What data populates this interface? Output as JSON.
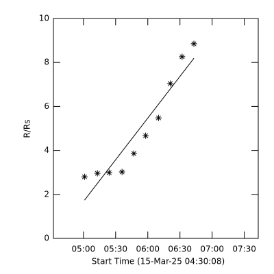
{
  "chart_data": {
    "type": "scatter",
    "xlabel": "Start Time (15-Mar-25 04:30:08)",
    "ylabel": "R/Rs",
    "xlim": [
      272,
      463
    ],
    "ylim": [
      0,
      10
    ],
    "xticks": [
      {
        "value": 300,
        "label": "05:00"
      },
      {
        "value": 330,
        "label": "05:30"
      },
      {
        "value": 360,
        "label": "06:00"
      },
      {
        "value": 390,
        "label": "06:30"
      },
      {
        "value": 420,
        "label": "07:00"
      },
      {
        "value": 450,
        "label": "07:30"
      }
    ],
    "yticks": [
      0,
      2,
      4,
      6,
      8,
      10
    ],
    "series": [
      {
        "mode": "markers",
        "color": "#000000",
        "x": [
          301,
          313,
          324,
          336,
          347,
          358,
          370,
          381,
          392,
          403
        ],
        "values": [
          2.8,
          2.96,
          2.99,
          3.02,
          3.86,
          4.67,
          5.48,
          7.04,
          8.26,
          8.85
        ]
      },
      {
        "mode": "line",
        "color": "#000000",
        "x": [
          301,
          403
        ],
        "values": [
          1.74,
          8.19
        ]
      }
    ]
  }
}
